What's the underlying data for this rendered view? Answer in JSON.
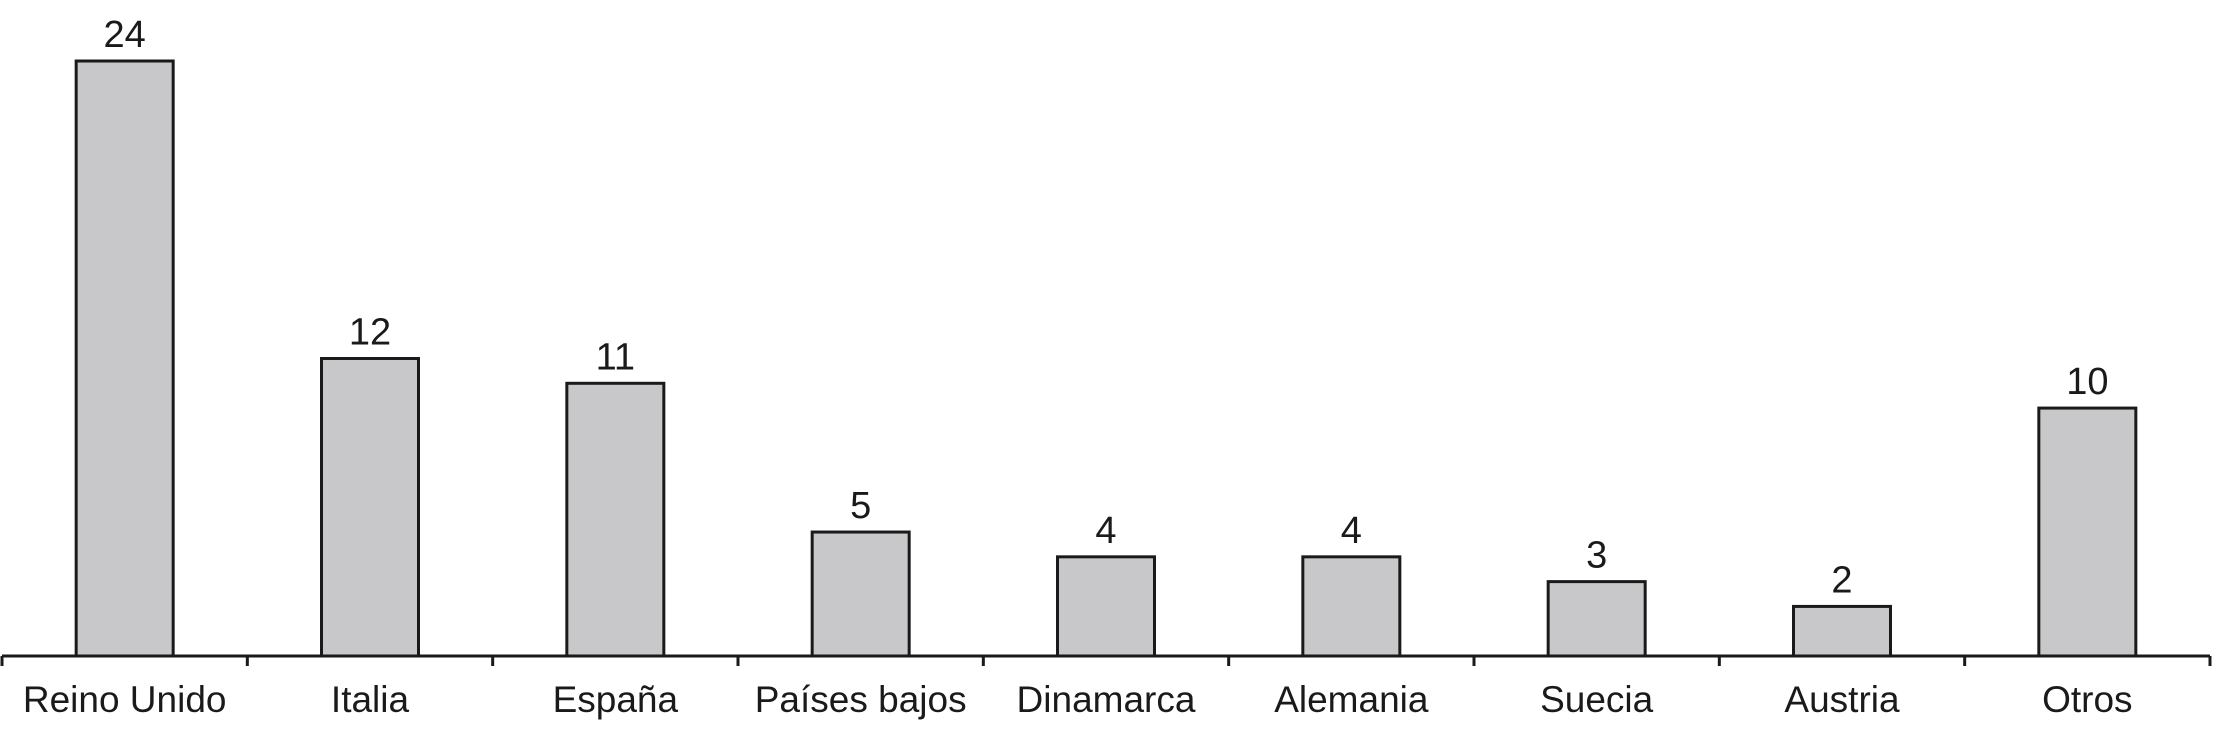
{
  "chart_data": {
    "type": "bar",
    "categories": [
      "Reino Unido",
      "Italia",
      "España",
      "Países bajos",
      "Dinamarca",
      "Alemania",
      "Suecia",
      "Austria",
      "Otros"
    ],
    "values": [
      24,
      12,
      11,
      5,
      4,
      4,
      3,
      2,
      10
    ],
    "title": "",
    "xlabel": "",
    "ylabel": "",
    "ylim": [
      0,
      24
    ],
    "grid": false,
    "data_labels": true,
    "colors": {
      "bar_fill": "#c8c8ca",
      "bar_stroke": "#1a1a1a",
      "axis": "#1a1a1a"
    }
  }
}
